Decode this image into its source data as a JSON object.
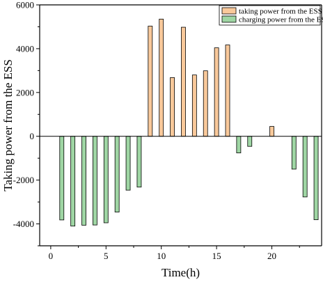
{
  "chart_data": {
    "type": "bar",
    "xlabel": "Time(h)",
    "ylabel": "Taking power from the ESS",
    "xlim": [
      -1,
      24.5
    ],
    "ylim": [
      -5000,
      6000
    ],
    "x_ticks": [
      0,
      5,
      10,
      15,
      20
    ],
    "y_ticks": [
      -4000,
      -2000,
      0,
      2000,
      4000,
      6000
    ],
    "grid": false,
    "legend_position": "top-right",
    "series": [
      {
        "name": "taking power from the ESS",
        "color": "#f9c99b",
        "x": [
          9,
          10,
          11,
          12,
          13,
          14,
          15,
          16,
          20
        ],
        "values": [
          5030,
          5350,
          2680,
          4980,
          2800,
          2990,
          4040,
          4170,
          450
        ]
      },
      {
        "name": "charging power from the ESS",
        "color": "#9fd6a4",
        "x": [
          1,
          2,
          3,
          4,
          5,
          6,
          7,
          8,
          17,
          18,
          22,
          23,
          24
        ],
        "values": [
          -3820,
          -4100,
          -4060,
          -4050,
          -3950,
          -3460,
          -2460,
          -2320,
          -760,
          -460,
          -1500,
          -2770,
          -3810
        ]
      }
    ]
  }
}
